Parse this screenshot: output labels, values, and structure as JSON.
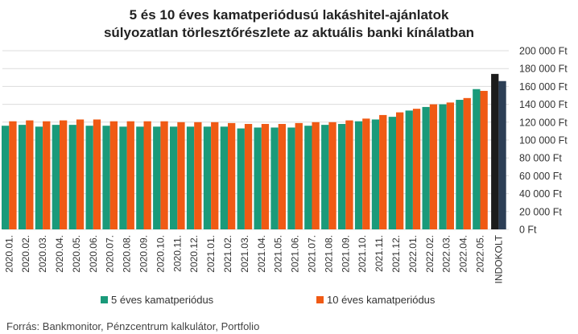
{
  "title": {
    "line1": "5 és 10 éves kamatperiódusú lakáshitel-ajánlatok",
    "line2": "súlyozatlan törlesztőrészlete az aktuális banki kínálatban"
  },
  "source": "Forrás: Bankmonitor, Pénzcentrum kalkulátor, Portfolio",
  "colors": {
    "series5": "#1a9a7a",
    "series10": "#f05a14",
    "indokolt1": "#1c1c1c",
    "indokolt2": "#2c3e55",
    "grid": "#dcdcdc"
  },
  "chart_data": {
    "type": "bar",
    "title": "5 és 10 éves kamatperiódusú lakáshitel-ajánlatok súlyozatlan törlesztőrészlete az aktuális banki kínálatban",
    "categories": [
      "2020.01.",
      "2020.02.",
      "2020.03.",
      "2020.04.",
      "2020.05.",
      "2020.06.",
      "2020.07.",
      "2020.08.",
      "2020.09.",
      "2020.10.",
      "2020.11.",
      "2020.12.",
      "2021.01.",
      "2021.02.",
      "2021.03.",
      "2021.04.",
      "2021.05.",
      "2021.06.",
      "2021.07.",
      "2021.08.",
      "2021.09.",
      "2021.10.",
      "2021.11.",
      "2021.12.",
      "2022.01.",
      "2022.02.",
      "2022.03.",
      "2022.04.",
      "2022.05."
    ],
    "series": [
      {
        "name": "5 éves kamatperiódus",
        "values": [
          116000,
          117000,
          115000,
          117000,
          117000,
          116000,
          116000,
          115000,
          115000,
          115000,
          115000,
          115000,
          115000,
          115000,
          113000,
          114000,
          114000,
          114000,
          116000,
          117000,
          118000,
          121000,
          123000,
          126000,
          133000,
          137000,
          140000,
          145000,
          157000
        ]
      },
      {
        "name": "10 éves kamatperiódus",
        "values": [
          121000,
          122000,
          121000,
          122000,
          123000,
          123000,
          121000,
          121000,
          121000,
          121000,
          120000,
          120000,
          120000,
          119000,
          118000,
          118000,
          118000,
          119000,
          120000,
          120000,
          122000,
          124000,
          128000,
          131000,
          135000,
          140000,
          142000,
          147000,
          155000
        ]
      }
    ],
    "indokolt": {
      "label": "INDOKOLT",
      "values": [
        174000,
        166000
      ]
    },
    "ylim": [
      0,
      200000
    ],
    "yticks": [
      "0 Ft",
      "20 000 Ft",
      "40 000 Ft",
      "60 000 Ft",
      "80 000 Ft",
      "100 000 Ft",
      "120 000 Ft",
      "140 000 Ft",
      "160 000 Ft",
      "180 000 Ft",
      "200 000 Ft"
    ],
    "ytick_values": [
      0,
      20000,
      40000,
      60000,
      80000,
      100000,
      120000,
      140000,
      160000,
      180000,
      200000
    ],
    "grid": true,
    "legend_position": "bottom"
  }
}
